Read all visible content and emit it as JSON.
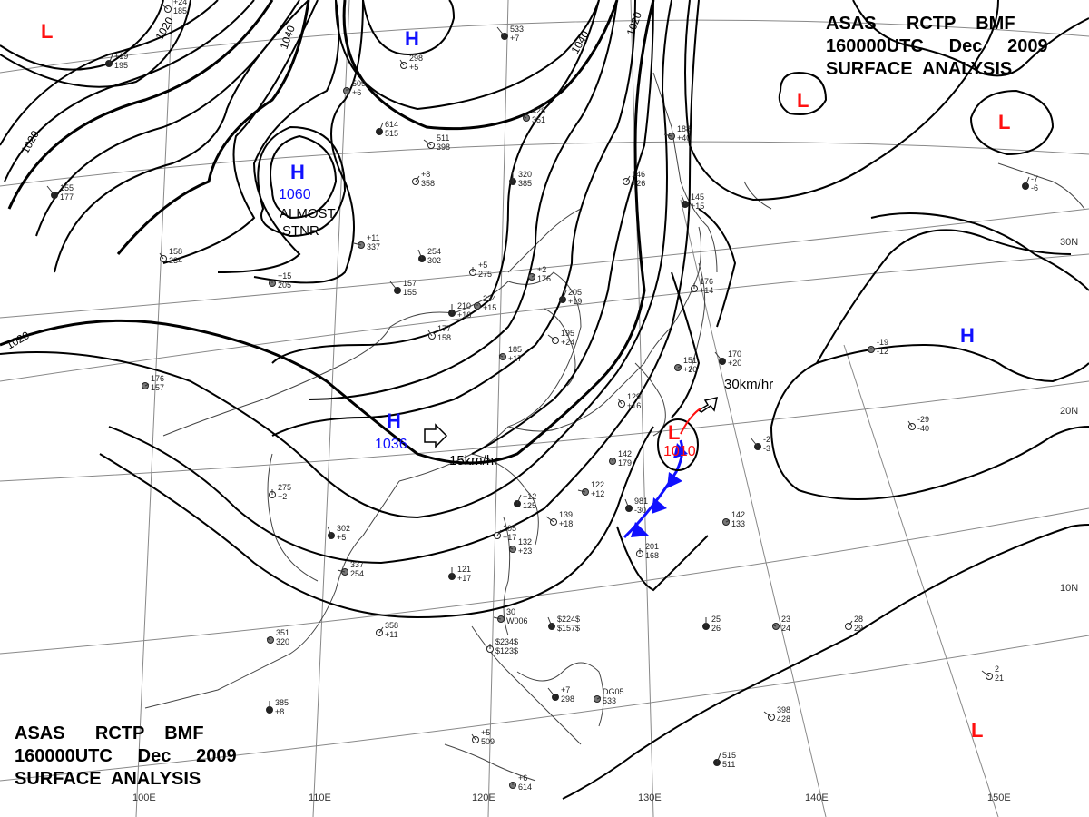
{
  "header": {
    "line1": "ASAS      RCTP    BMF",
    "line2": "160000UTC     Dec     2009",
    "line3": "SURFACE  ANALYSIS"
  },
  "footer": {
    "line1": "ASAS      RCTP    BMF",
    "line2": "160000UTC     Dec     2009",
    "line3": "SURFACE  ANALYSIS"
  },
  "longitudes": [
    "100E",
    "110E",
    "120E",
    "130E",
    "140E",
    "150E"
  ],
  "latitudes": [
    "30N",
    "20N",
    "10N"
  ],
  "isobar_labels": [
    "1020",
    "1040",
    "1040",
    "1020",
    "1020",
    "1020"
  ],
  "pressure_centers": [
    {
      "symbol": "H",
      "value": "1060"
    },
    {
      "symbol": "H",
      "value": "1036"
    },
    {
      "symbol": "L",
      "value": "1010"
    },
    {
      "symbol": "H",
      "value": ""
    },
    {
      "symbol": "H",
      "value": ""
    },
    {
      "symbol": "L",
      "value": ""
    },
    {
      "symbol": "L",
      "value": ""
    },
    {
      "symbol": "L",
      "value": ""
    },
    {
      "symbol": "L",
      "value": ""
    }
  ],
  "annotations": {
    "almost": "ALMOST",
    "stnr": "STNR",
    "motion_high": "15km/hr",
    "motion_low": "30km/hr"
  },
  "colors": {
    "high": "#1010ff",
    "low": "#ff1010",
    "front": "#1010ff",
    "isobar": "#000000",
    "grid": "#888888",
    "coast": "#444444"
  },
  "station_samples": [
    "533",
    "+7",
    "298",
    "+5",
    "509",
    "+6",
    "614",
    "515",
    "511",
    "398",
    "428",
    "351",
    "320",
    "385",
    "+8",
    "358",
    "+11",
    "337",
    "254",
    "302",
    "+5",
    "275",
    "+2",
    "176",
    "157",
    "155",
    "177",
    "158",
    "234",
    "+15",
    "205",
    "+19",
    "195",
    "+24",
    "185",
    "+17",
    "210",
    "+16",
    "146",
    "+26",
    "188",
    "+40",
    "145",
    "+15",
    "176",
    "+14",
    "151",
    "+20",
    "170",
    "+20",
    "129",
    "+16",
    "142",
    "179",
    "+12",
    "125",
    "139",
    "+18",
    "132",
    "+23",
    "121",
    "+17",
    "105",
    "+17",
    "122",
    "+12",
    "981",
    "-30",
    "201",
    "168",
    "142",
    "133",
    "-2",
    "-3",
    "-29",
    "-40",
    "-19",
    "-12",
    "-7",
    "-6",
    "2",
    "21",
    "23",
    "24",
    "25",
    "26",
    "28",
    "29",
    "30",
    "W006",
    "$224$",
    "$157$",
    "$234$",
    "$123$",
    "DG05"
  ]
}
